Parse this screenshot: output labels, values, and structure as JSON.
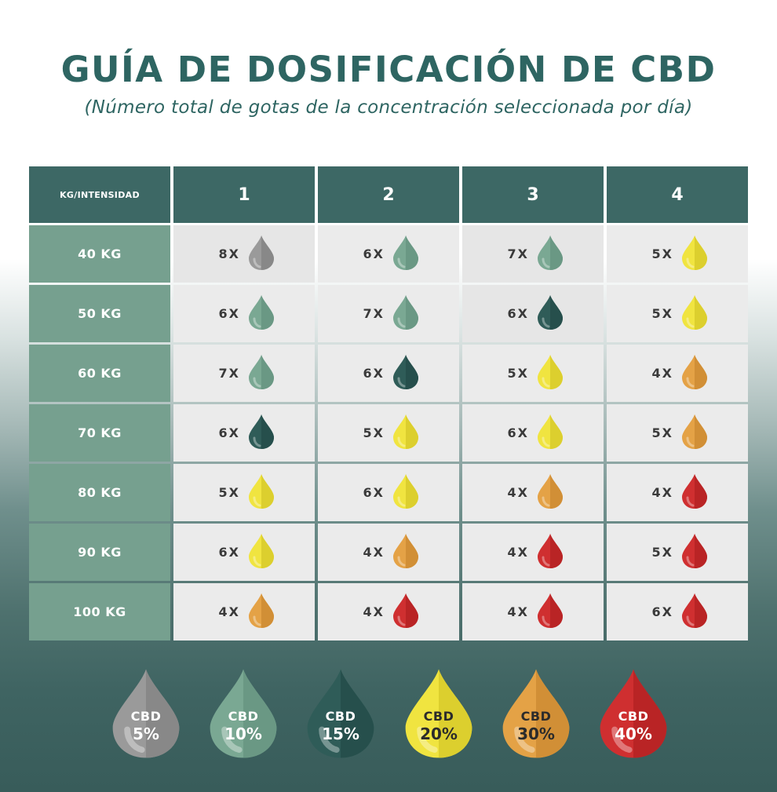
{
  "title": "GUÍA DE DOSIFICACIÓN DE CBD",
  "subtitle": "(Número total de gotas de la concentración seleccionada por día)",
  "table": {
    "corner": "KG/INTENSIDAD",
    "columns": [
      "1",
      "2",
      "3",
      "4"
    ],
    "rows": [
      {
        "label": "40 KG",
        "cells": [
          {
            "count": "8X",
            "level": "5%"
          },
          {
            "count": "6X",
            "level": "10%"
          },
          {
            "count": "7X",
            "level": "10%"
          },
          {
            "count": "5X",
            "level": "20%"
          }
        ]
      },
      {
        "label": "50 KG",
        "cells": [
          {
            "count": "6X",
            "level": "10%"
          },
          {
            "count": "7X",
            "level": "10%"
          },
          {
            "count": "6X",
            "level": "15%"
          },
          {
            "count": "5X",
            "level": "20%"
          }
        ]
      },
      {
        "label": "60 KG",
        "cells": [
          {
            "count": "7X",
            "level": "10%"
          },
          {
            "count": "6X",
            "level": "15%"
          },
          {
            "count": "5X",
            "level": "20%"
          },
          {
            "count": "4X",
            "level": "30%"
          }
        ]
      },
      {
        "label": "70 KG",
        "cells": [
          {
            "count": "6X",
            "level": "15%"
          },
          {
            "count": "5X",
            "level": "20%"
          },
          {
            "count": "6X",
            "level": "20%"
          },
          {
            "count": "5X",
            "level": "30%"
          }
        ]
      },
      {
        "label": "80 KG",
        "cells": [
          {
            "count": "5X",
            "level": "20%"
          },
          {
            "count": "6X",
            "level": "20%"
          },
          {
            "count": "4X",
            "level": "30%"
          },
          {
            "count": "4X",
            "level": "40%"
          }
        ]
      },
      {
        "label": "90 KG",
        "cells": [
          {
            "count": "6X",
            "level": "20%"
          },
          {
            "count": "4X",
            "level": "30%"
          },
          {
            "count": "4X",
            "level": "40%"
          },
          {
            "count": "5X",
            "level": "40%"
          }
        ]
      },
      {
        "label": "100 KG",
        "cells": [
          {
            "count": "4X",
            "level": "30%"
          },
          {
            "count": "4X",
            "level": "40%"
          },
          {
            "count": "4X",
            "level": "40%"
          },
          {
            "count": "6X",
            "level": "40%"
          }
        ]
      }
    ]
  },
  "legend": [
    {
      "name": "CBD",
      "percent": "5%",
      "color": "#9a9a9a",
      "shade": "#888888",
      "text_color": "#ffffff"
    },
    {
      "name": "CBD",
      "percent": "10%",
      "color": "#7aa893",
      "shade": "#6a9884",
      "text_color": "#ffffff"
    },
    {
      "name": "CBD",
      "percent": "15%",
      "color": "#2f5c58",
      "shade": "#264f4c",
      "text_color": "#ffffff"
    },
    {
      "name": "CBD",
      "percent": "20%",
      "color": "#f0e440",
      "shade": "#dccf2e",
      "text_color": "#2b2b2b"
    },
    {
      "name": "CBD",
      "percent": "30%",
      "color": "#e4a246",
      "shade": "#d18f36",
      "text_color": "#2b2b2b"
    },
    {
      "name": "CBD",
      "percent": "40%",
      "color": "#cf2f30",
      "shade": "#b92425",
      "text_color": "#ffffff"
    }
  ]
}
